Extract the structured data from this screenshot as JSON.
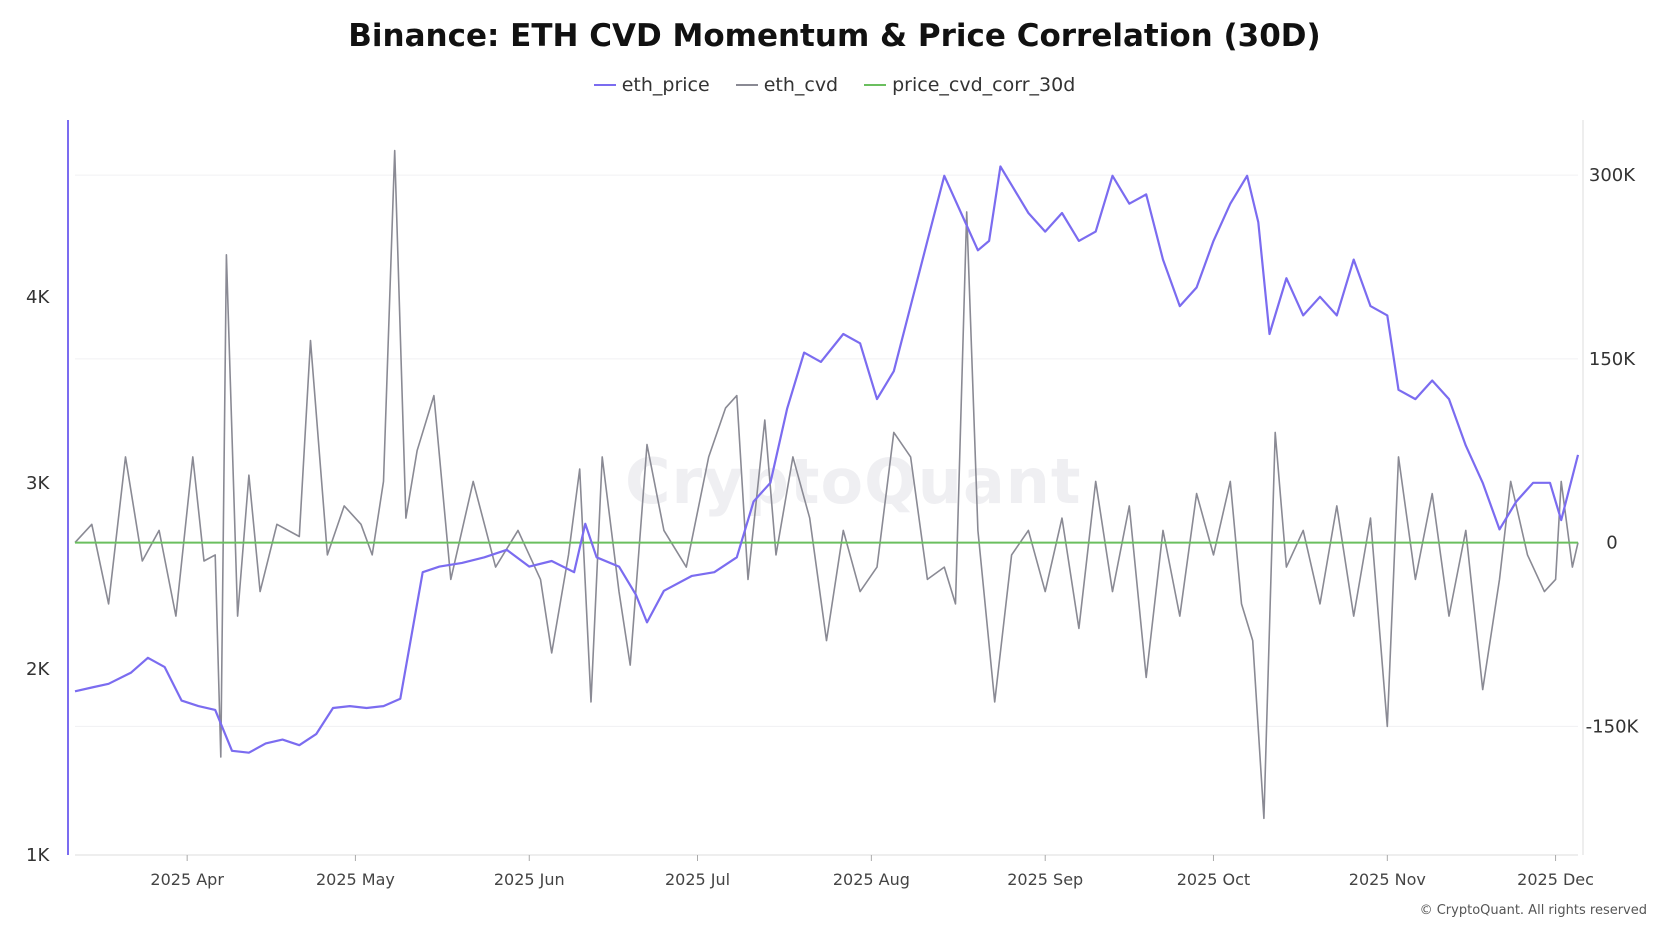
{
  "chart_data": {
    "type": "line",
    "title": "Binance: ETH CVD Momentum & Price Correlation (30D)",
    "watermark": "CryptoQuant",
    "copyright": "© CryptoQuant. All rights reserved",
    "x_ticks": [
      "2025 Apr",
      "2025 May",
      "2025 Jun",
      "2025 Jul",
      "2025 Aug",
      "2025 Sep",
      "2025 Oct",
      "2025 Nov",
      "2025 Dec"
    ],
    "x_tick_dates": [
      "2025-04-01",
      "2025-05-01",
      "2025-06-01",
      "2025-07-01",
      "2025-08-01",
      "2025-09-01",
      "2025-10-01",
      "2025-11-01",
      "2025-12-01"
    ],
    "x_range": [
      "2025-03-12",
      "2025-12-05"
    ],
    "y_left": {
      "ticks": [
        "1K",
        "2K",
        "3K",
        "4K"
      ],
      "tick_values": [
        1000,
        2000,
        3000,
        4000
      ],
      "ylim": [
        1000,
        4950
      ]
    },
    "y_right": {
      "ticks": [
        "-150K",
        "0",
        "150K",
        "300K"
      ],
      "tick_values": [
        -150000,
        0,
        150000,
        300000
      ],
      "ylim": [
        -255000,
        345000
      ]
    },
    "grid": true,
    "legend_position": "top-center",
    "series": [
      {
        "name": "eth_price",
        "axis": "left",
        "color": "#7b6cf0",
        "points": [
          [
            "2025-03-12",
            1880
          ],
          [
            "2025-03-15",
            1900
          ],
          [
            "2025-03-18",
            1920
          ],
          [
            "2025-03-22",
            1980
          ],
          [
            "2025-03-25",
            2060
          ],
          [
            "2025-03-28",
            2010
          ],
          [
            "2025-03-31",
            1830
          ],
          [
            "2025-04-03",
            1800
          ],
          [
            "2025-04-06",
            1780
          ],
          [
            "2025-04-09",
            1560
          ],
          [
            "2025-04-12",
            1550
          ],
          [
            "2025-04-15",
            1600
          ],
          [
            "2025-04-18",
            1620
          ],
          [
            "2025-04-21",
            1590
          ],
          [
            "2025-04-24",
            1650
          ],
          [
            "2025-04-27",
            1790
          ],
          [
            "2025-04-30",
            1800
          ],
          [
            "2025-05-03",
            1790
          ],
          [
            "2025-05-06",
            1800
          ],
          [
            "2025-05-09",
            1840
          ],
          [
            "2025-05-11",
            2180
          ],
          [
            "2025-05-13",
            2520
          ],
          [
            "2025-05-16",
            2550
          ],
          [
            "2025-05-20",
            2570
          ],
          [
            "2025-05-24",
            2600
          ],
          [
            "2025-05-28",
            2640
          ],
          [
            "2025-06-01",
            2550
          ],
          [
            "2025-06-05",
            2580
          ],
          [
            "2025-06-09",
            2520
          ],
          [
            "2025-06-11",
            2780
          ],
          [
            "2025-06-13",
            2600
          ],
          [
            "2025-06-17",
            2550
          ],
          [
            "2025-06-20",
            2400
          ],
          [
            "2025-06-22",
            2250
          ],
          [
            "2025-06-25",
            2420
          ],
          [
            "2025-06-30",
            2500
          ],
          [
            "2025-07-04",
            2520
          ],
          [
            "2025-07-08",
            2600
          ],
          [
            "2025-07-11",
            2900
          ],
          [
            "2025-07-14",
            3000
          ],
          [
            "2025-07-17",
            3400
          ],
          [
            "2025-07-20",
            3700
          ],
          [
            "2025-07-23",
            3650
          ],
          [
            "2025-07-27",
            3800
          ],
          [
            "2025-07-30",
            3750
          ],
          [
            "2025-08-02",
            3450
          ],
          [
            "2025-08-05",
            3600
          ],
          [
            "2025-08-08",
            3950
          ],
          [
            "2025-08-11",
            4300
          ],
          [
            "2025-08-14",
            4650
          ],
          [
            "2025-08-17",
            4450
          ],
          [
            "2025-08-20",
            4250
          ],
          [
            "2025-08-22",
            4300
          ],
          [
            "2025-08-24",
            4700
          ],
          [
            "2025-08-26",
            4600
          ],
          [
            "2025-08-29",
            4450
          ],
          [
            "2025-09-01",
            4350
          ],
          [
            "2025-09-04",
            4450
          ],
          [
            "2025-09-07",
            4300
          ],
          [
            "2025-09-10",
            4350
          ],
          [
            "2025-09-13",
            4650
          ],
          [
            "2025-09-16",
            4500
          ],
          [
            "2025-09-19",
            4550
          ],
          [
            "2025-09-22",
            4200
          ],
          [
            "2025-09-25",
            3950
          ],
          [
            "2025-09-28",
            4050
          ],
          [
            "2025-10-01",
            4300
          ],
          [
            "2025-10-04",
            4500
          ],
          [
            "2025-10-07",
            4650
          ],
          [
            "2025-10-09",
            4400
          ],
          [
            "2025-10-11",
            3800
          ],
          [
            "2025-10-14",
            4100
          ],
          [
            "2025-10-17",
            3900
          ],
          [
            "2025-10-20",
            4000
          ],
          [
            "2025-10-23",
            3900
          ],
          [
            "2025-10-26",
            4200
          ],
          [
            "2025-10-29",
            3950
          ],
          [
            "2025-11-01",
            3900
          ],
          [
            "2025-11-03",
            3500
          ],
          [
            "2025-11-06",
            3450
          ],
          [
            "2025-11-09",
            3550
          ],
          [
            "2025-11-12",
            3450
          ],
          [
            "2025-11-15",
            3200
          ],
          [
            "2025-11-18",
            3000
          ],
          [
            "2025-11-21",
            2750
          ],
          [
            "2025-11-24",
            2900
          ],
          [
            "2025-11-27",
            3000
          ],
          [
            "2025-11-30",
            3000
          ],
          [
            "2025-12-02",
            2800
          ],
          [
            "2025-12-05",
            3150
          ]
        ]
      },
      {
        "name": "eth_cvd",
        "axis": "right",
        "color": "#8a8a94",
        "points": [
          [
            "2025-03-12",
            0
          ],
          [
            "2025-03-15",
            15000
          ],
          [
            "2025-03-18",
            -50000
          ],
          [
            "2025-03-21",
            70000
          ],
          [
            "2025-03-24",
            -15000
          ],
          [
            "2025-03-27",
            10000
          ],
          [
            "2025-03-30",
            -60000
          ],
          [
            "2025-04-02",
            70000
          ],
          [
            "2025-04-04",
            -15000
          ],
          [
            "2025-04-06",
            -10000
          ],
          [
            "2025-04-07",
            -175000
          ],
          [
            "2025-04-08",
            235000
          ],
          [
            "2025-04-10",
            -60000
          ],
          [
            "2025-04-12",
            55000
          ],
          [
            "2025-04-14",
            -40000
          ],
          [
            "2025-04-17",
            15000
          ],
          [
            "2025-04-21",
            5000
          ],
          [
            "2025-04-23",
            165000
          ],
          [
            "2025-04-26",
            -10000
          ],
          [
            "2025-04-29",
            30000
          ],
          [
            "2025-05-02",
            15000
          ],
          [
            "2025-05-04",
            -10000
          ],
          [
            "2025-05-06",
            50000
          ],
          [
            "2025-05-08",
            320000
          ],
          [
            "2025-05-10",
            20000
          ],
          [
            "2025-05-12",
            75000
          ],
          [
            "2025-05-15",
            120000
          ],
          [
            "2025-05-18",
            -30000
          ],
          [
            "2025-05-22",
            50000
          ],
          [
            "2025-05-26",
            -20000
          ],
          [
            "2025-05-30",
            10000
          ],
          [
            "2025-06-03",
            -30000
          ],
          [
            "2025-06-05",
            -90000
          ],
          [
            "2025-06-08",
            -10000
          ],
          [
            "2025-06-10",
            60000
          ],
          [
            "2025-06-12",
            -130000
          ],
          [
            "2025-06-14",
            70000
          ],
          [
            "2025-06-17",
            -40000
          ],
          [
            "2025-06-19",
            -100000
          ],
          [
            "2025-06-22",
            80000
          ],
          [
            "2025-06-25",
            10000
          ],
          [
            "2025-06-29",
            -20000
          ],
          [
            "2025-07-03",
            70000
          ],
          [
            "2025-07-06",
            110000
          ],
          [
            "2025-07-08",
            120000
          ],
          [
            "2025-07-10",
            -30000
          ],
          [
            "2025-07-13",
            100000
          ],
          [
            "2025-07-15",
            -10000
          ],
          [
            "2025-07-18",
            70000
          ],
          [
            "2025-07-21",
            20000
          ],
          [
            "2025-07-24",
            -80000
          ],
          [
            "2025-07-27",
            10000
          ],
          [
            "2025-07-30",
            -40000
          ],
          [
            "2025-08-02",
            -20000
          ],
          [
            "2025-08-05",
            90000
          ],
          [
            "2025-08-08",
            70000
          ],
          [
            "2025-08-11",
            -30000
          ],
          [
            "2025-08-14",
            -20000
          ],
          [
            "2025-08-16",
            -50000
          ],
          [
            "2025-08-18",
            270000
          ],
          [
            "2025-08-20",
            10000
          ],
          [
            "2025-08-23",
            -130000
          ],
          [
            "2025-08-26",
            -10000
          ],
          [
            "2025-08-29",
            10000
          ],
          [
            "2025-09-01",
            -40000
          ],
          [
            "2025-09-04",
            20000
          ],
          [
            "2025-09-07",
            -70000
          ],
          [
            "2025-09-10",
            50000
          ],
          [
            "2025-09-13",
            -40000
          ],
          [
            "2025-09-16",
            30000
          ],
          [
            "2025-09-19",
            -110000
          ],
          [
            "2025-09-22",
            10000
          ],
          [
            "2025-09-25",
            -60000
          ],
          [
            "2025-09-28",
            40000
          ],
          [
            "2025-10-01",
            -10000
          ],
          [
            "2025-10-04",
            50000
          ],
          [
            "2025-10-06",
            -50000
          ],
          [
            "2025-10-08",
            -80000
          ],
          [
            "2025-10-10",
            -225000
          ],
          [
            "2025-10-12",
            90000
          ],
          [
            "2025-10-14",
            -20000
          ],
          [
            "2025-10-17",
            10000
          ],
          [
            "2025-10-20",
            -50000
          ],
          [
            "2025-10-23",
            30000
          ],
          [
            "2025-10-26",
            -60000
          ],
          [
            "2025-10-29",
            20000
          ],
          [
            "2025-11-01",
            -150000
          ],
          [
            "2025-11-03",
            70000
          ],
          [
            "2025-11-06",
            -30000
          ],
          [
            "2025-11-09",
            40000
          ],
          [
            "2025-11-12",
            -60000
          ],
          [
            "2025-11-15",
            10000
          ],
          [
            "2025-11-18",
            -120000
          ],
          [
            "2025-11-21",
            -30000
          ],
          [
            "2025-11-23",
            50000
          ],
          [
            "2025-11-26",
            -10000
          ],
          [
            "2025-11-29",
            -40000
          ],
          [
            "2025-12-01",
            -30000
          ],
          [
            "2025-12-02",
            50000
          ],
          [
            "2025-12-04",
            -20000
          ],
          [
            "2025-12-05",
            0
          ]
        ]
      },
      {
        "name": "price_cvd_corr_30d",
        "axis": "right",
        "color": "#6bbf5f",
        "points": [
          [
            "2025-03-12",
            0
          ],
          [
            "2025-12-05",
            0
          ]
        ]
      }
    ]
  }
}
